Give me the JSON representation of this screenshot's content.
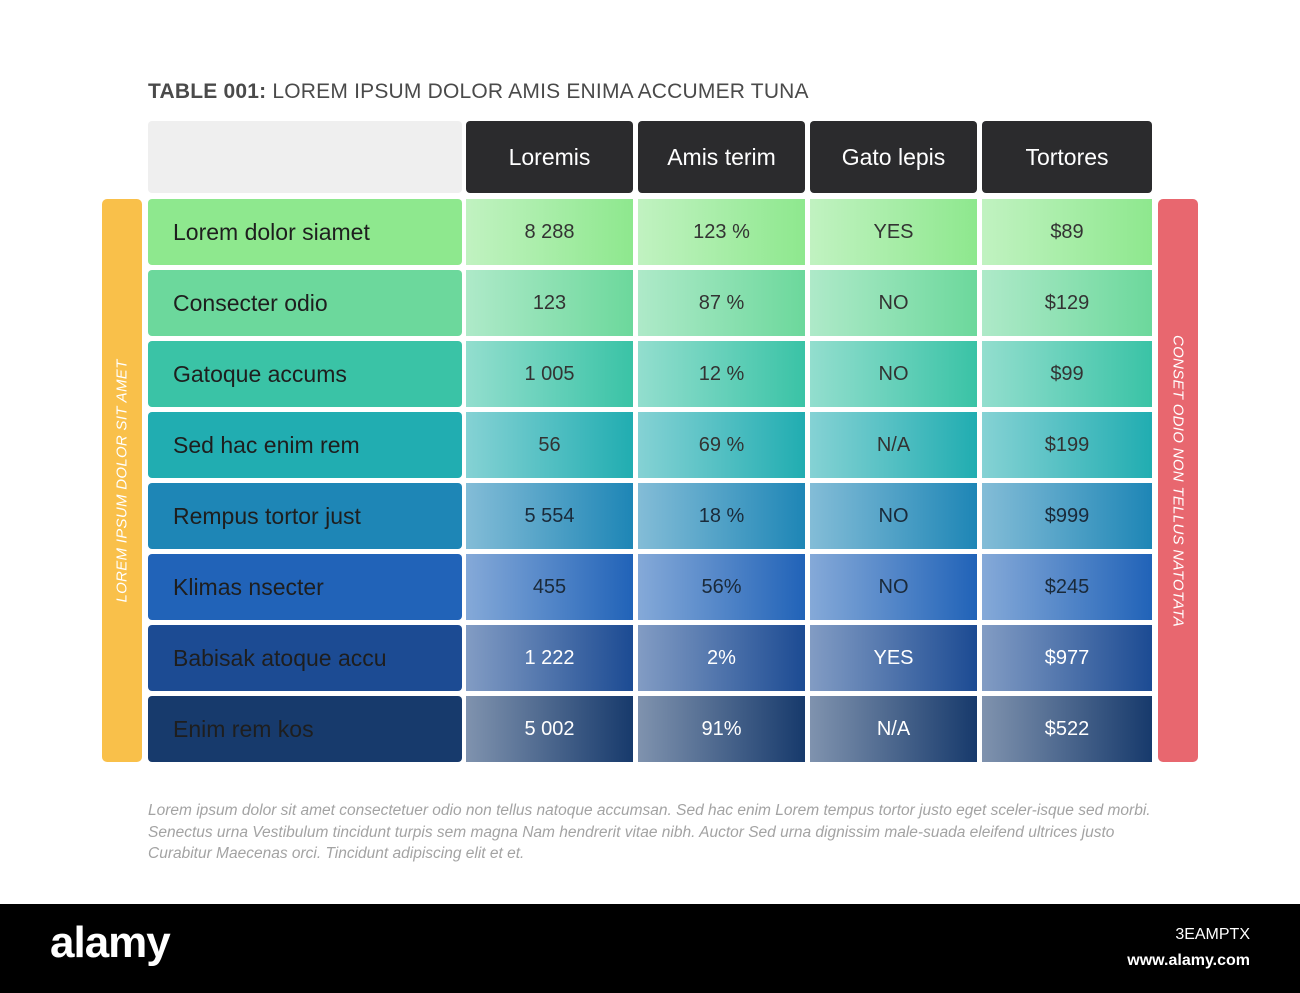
{
  "chart_data": {
    "type": "table",
    "title_prefix": "TABLE 001:",
    "title_text": "LOREM IPSUM DOLOR AMIS ENIMA ACCUMER TUNA",
    "columns": [
      "Loremis",
      "Amis terim",
      "Gato lepis",
      "Tortores"
    ],
    "rows": [
      {
        "label": "Lorem dolor siamet",
        "values": [
          "8 288",
          "123 %",
          "YES",
          "$89"
        ],
        "color": "#8ee88e"
      },
      {
        "label": "Consecter odio",
        "values": [
          "123",
          "87 %",
          "NO",
          "$129"
        ],
        "color": "#6cd89c"
      },
      {
        "label": "Gatoque accums",
        "values": [
          "1 005",
          "12 %",
          "NO",
          "$99"
        ],
        "color": "#3ac3a6"
      },
      {
        "label": "Sed hac enim rem",
        "values": [
          "56",
          "69 %",
          "N/A",
          "$199"
        ],
        "color": "#21adb1"
      },
      {
        "label": "Rempus tortor just",
        "values": [
          "5 554",
          "18 %",
          "NO",
          "$999"
        ],
        "color": "#1e86b6"
      },
      {
        "label": "Klimas nsecter",
        "values": [
          "455",
          "56%",
          "NO",
          "$245"
        ],
        "color": "#2163b8"
      },
      {
        "label": "Babisak atoque accu",
        "values": [
          "1 222",
          "2%",
          "YES",
          "$977"
        ],
        "color": "#1c4b93"
      },
      {
        "label": "Enim rem kos",
        "values": [
          "5 002",
          "91%",
          "N/A",
          "$522"
        ],
        "color": "#173a6c"
      }
    ],
    "left_side_label": "LOREM IPSUM DOLOR SIT AMET",
    "right_side_label": "CONSET ODIO NON TELLUS NATOTATA",
    "footnote": "Lorem ipsum dolor sit amet consectetuer odio non tellus natoque accumsan. Sed hac enim Lorem tempus tortor justo eget sceler-isque sed morbi. Senectus urna Vestibulum tincidunt turpis sem magna Nam hendrerit vitae nibh. Auctor Sed urna dignissim male-suada eleifend ultrices justo Curabitur Maecenas orci. Tincidunt adipiscing elit et et."
  },
  "colors": {
    "header_bg": "#2b2b2d",
    "corner_bg": "#efefef",
    "left_bar": "#f9c04a",
    "right_bar": "#e8676f"
  },
  "footer_bar": {
    "brand": "alamy",
    "image_id": "3EAMPTX",
    "url": "www.alamy.com"
  }
}
